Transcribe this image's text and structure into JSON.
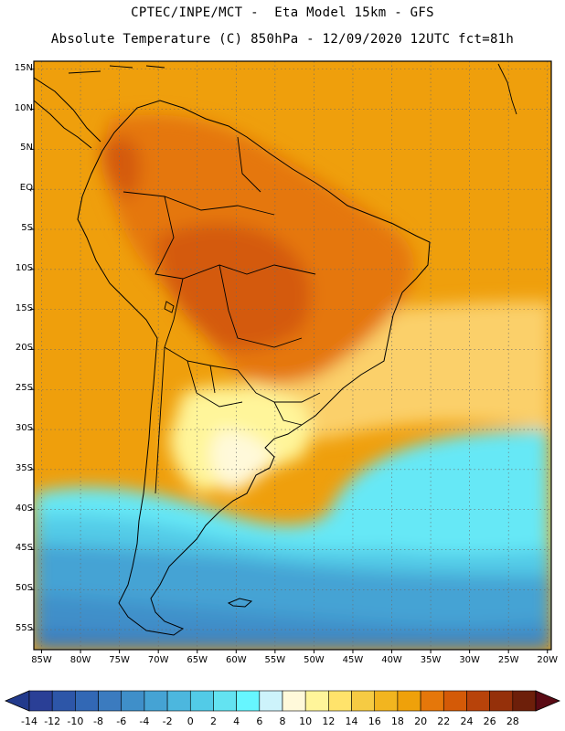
{
  "header": {
    "line1": "CPTEC/INPE/MCT -  Eta Model 15km - GFS",
    "line2": "Absolute Temperature (C) 850hPa - 12/09/2020 12UTC fct=81h"
  },
  "map": {
    "lat_labels": [
      "15N",
      "10N",
      "5N",
      "EQ",
      "5S",
      "10S",
      "15S",
      "20S",
      "25S",
      "30S",
      "35S",
      "40S",
      "45S",
      "50S",
      "55S"
    ],
    "lon_labels": [
      "85W",
      "80W",
      "75W",
      "70W",
      "65W",
      "60W",
      "55W",
      "50W",
      "45W",
      "40W",
      "35W",
      "30W",
      "25W",
      "20W"
    ],
    "extent": {
      "lon_min": -86,
      "lon_max": -19.5,
      "lat_min": -57.5,
      "lat_max": 16
    },
    "gridlines": "dotted",
    "background_color": "#ef9f0c"
  },
  "colorbar": {
    "labels": [
      "-14",
      "-12",
      "-10",
      "-8",
      "-6",
      "-4",
      "-2",
      "0",
      "2",
      "4",
      "6",
      "8",
      "10",
      "12",
      "14",
      "16",
      "18",
      "20",
      "22",
      "24",
      "26",
      "28"
    ],
    "colors": [
      "#2a3f96",
      "#2d56a8",
      "#3268b5",
      "#3b7bbf",
      "#3f8fc9",
      "#45a3d4",
      "#4cb7de",
      "#52cbe7",
      "#63e3f1",
      "#66f6ff",
      "#cdf3fb",
      "#fff9da",
      "#fff59a",
      "#ffe36b",
      "#f6cb43",
      "#f2b51f",
      "#efa10a",
      "#e5770a",
      "#d45a07",
      "#b8430a",
      "#95300a",
      "#6d1f0a"
    ],
    "under_color": "#223a8c",
    "over_color": "#5a0a14"
  }
}
